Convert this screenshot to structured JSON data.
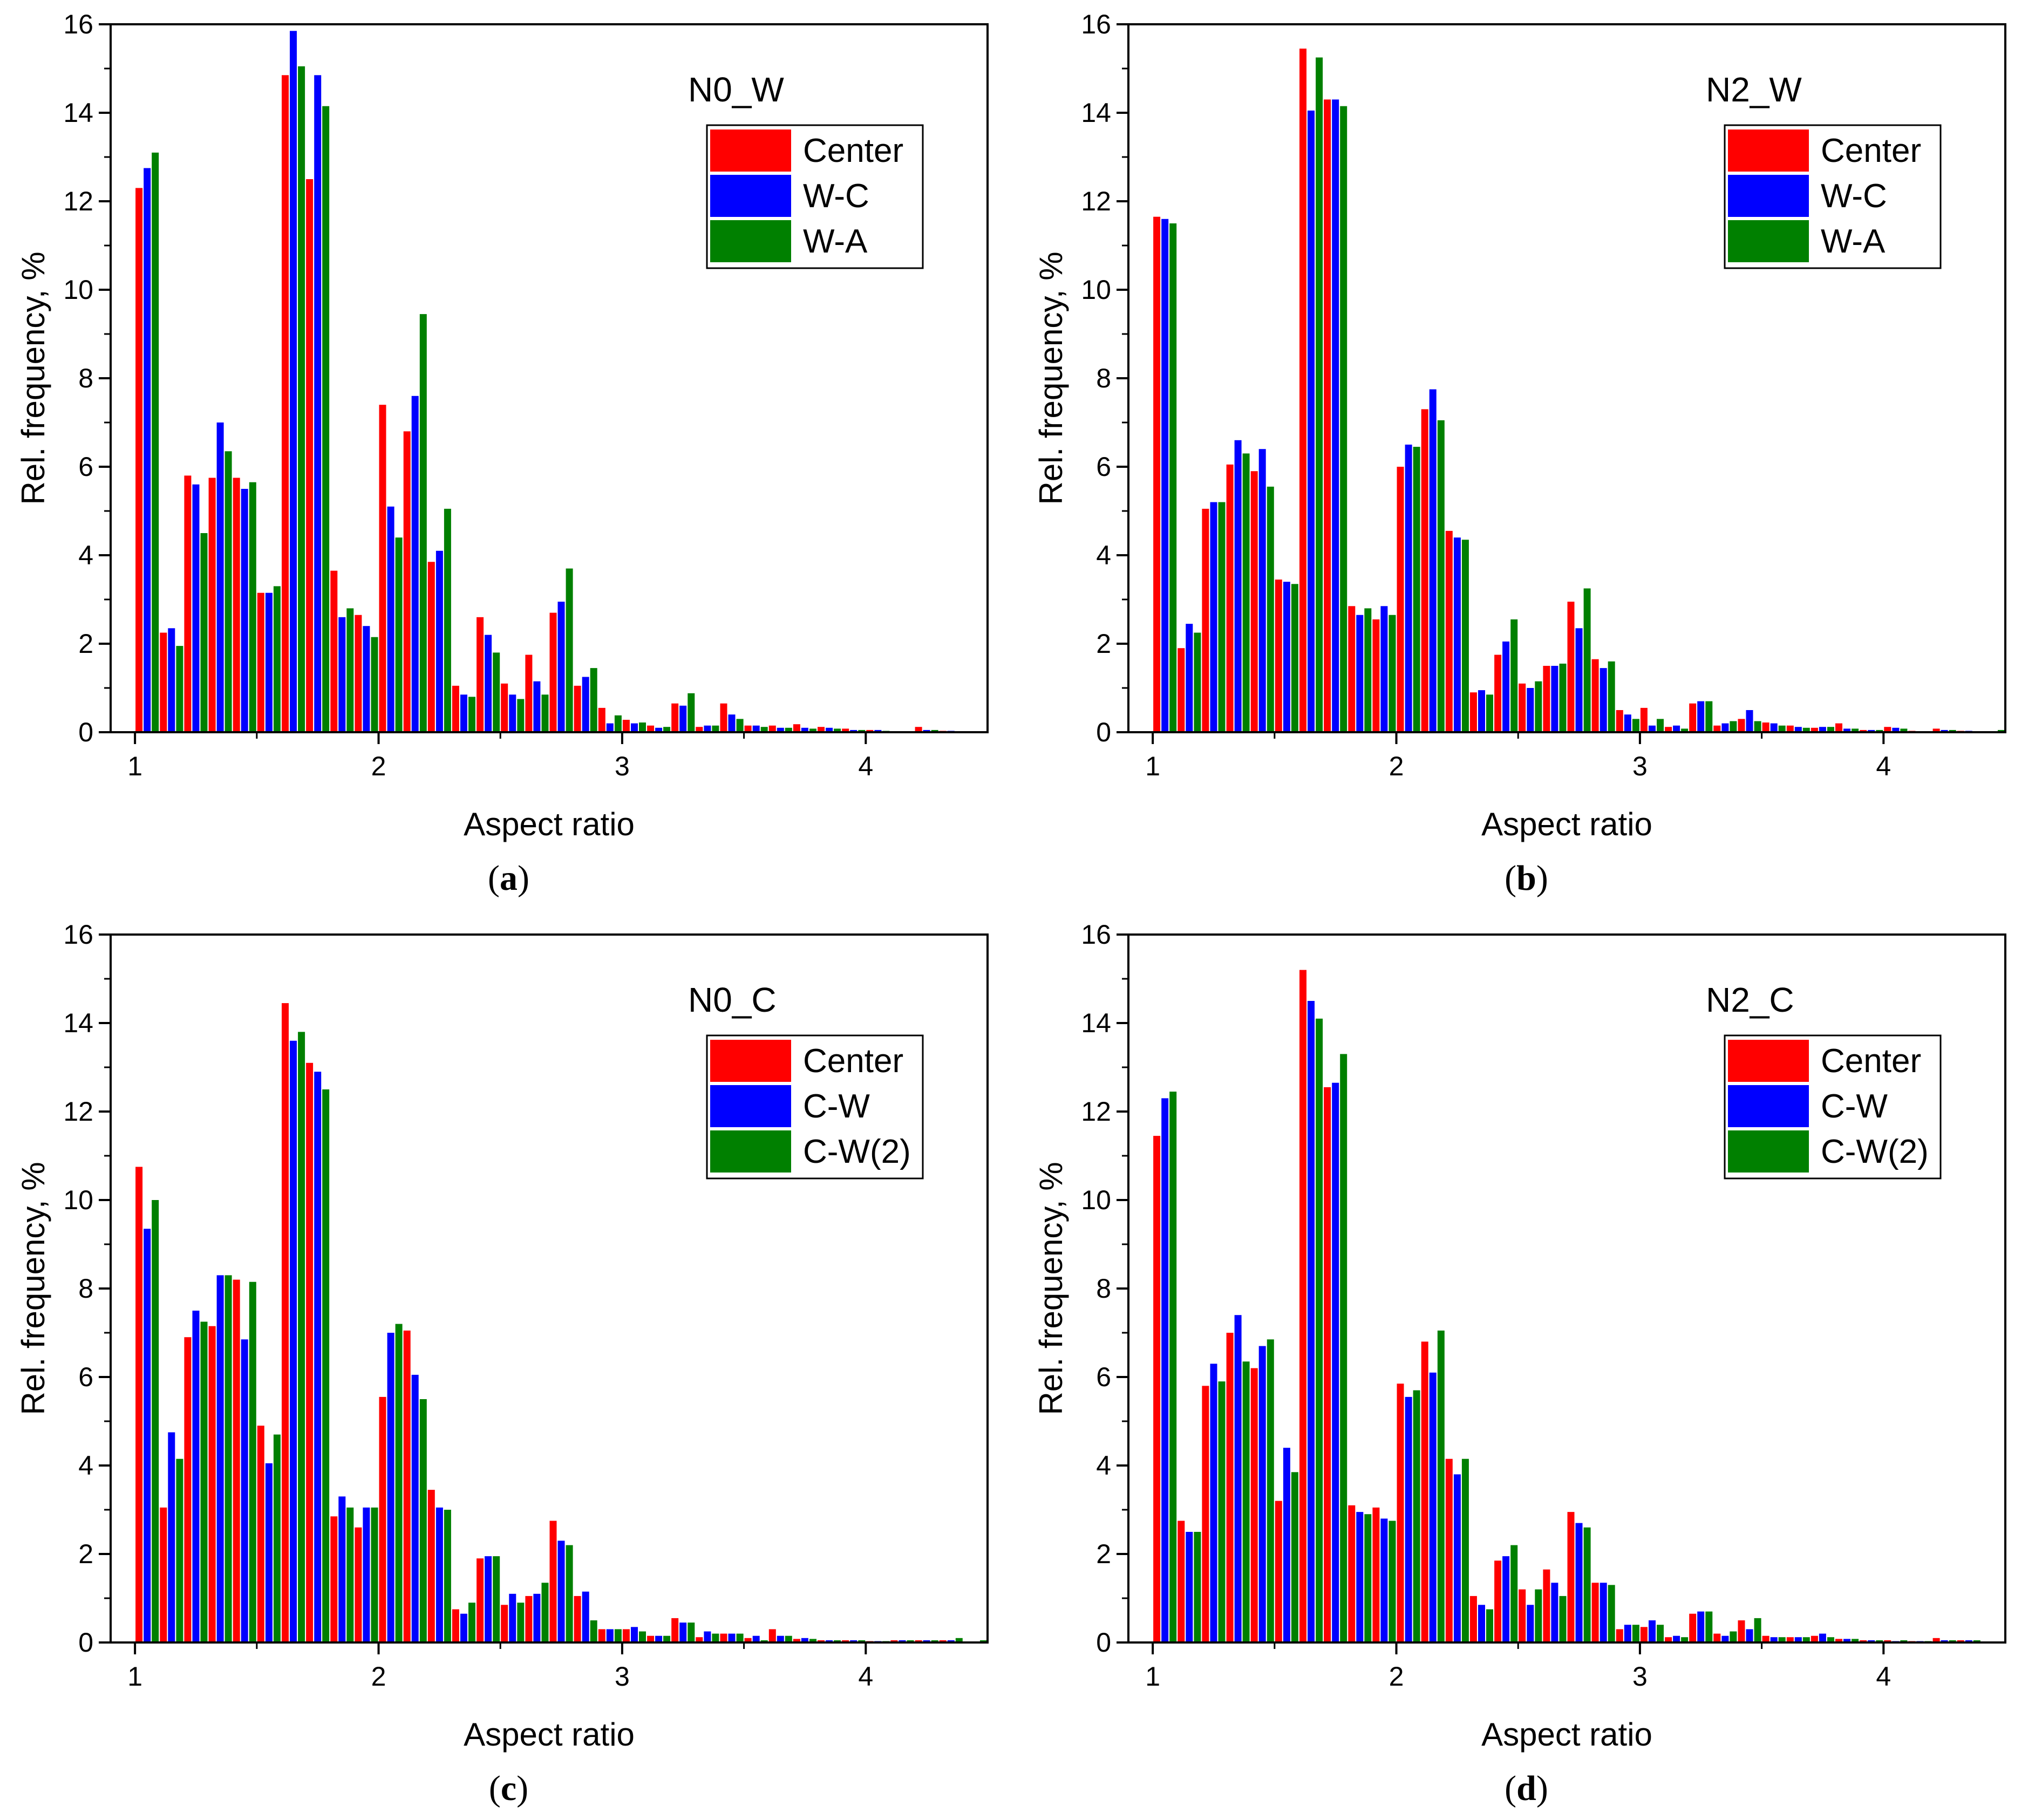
{
  "figure": {
    "captions": [
      "(a)",
      "(b)",
      "(c)",
      "(d)"
    ]
  },
  "colors": {
    "red": "#ff0000",
    "blue": "#0000ff",
    "green": "#008000"
  },
  "chart_data": [
    {
      "type": "bar",
      "panel": "(a)",
      "sample_label": "N0_W",
      "xlabel": "Aspect ratio",
      "ylabel": "Rel. frequency, %",
      "xlim": [
        0.9,
        4.5
      ],
      "ylim": [
        0,
        16
      ],
      "xticks": [
        "1",
        "2",
        "3",
        "4"
      ],
      "yticks": [
        "0",
        "2",
        "4",
        "6",
        "8",
        "10",
        "12",
        "14",
        "16"
      ],
      "x": [
        1.05,
        1.15,
        1.25,
        1.35,
        1.45,
        1.55,
        1.65,
        1.75,
        1.85,
        1.95,
        2.05,
        2.15,
        2.25,
        2.35,
        2.45,
        2.55,
        2.65,
        2.75,
        2.85,
        2.95,
        3.05,
        3.15,
        3.25,
        3.35,
        3.45,
        3.55,
        3.65,
        3.75,
        3.85,
        3.95,
        4.05,
        4.15,
        4.25,
        4.35,
        4.45
      ],
      "series": [
        {
          "name": "Center",
          "values": [
            12.3,
            2.25,
            5.8,
            5.75,
            5.75,
            3.15,
            14.85,
            12.5,
            3.65,
            2.65,
            7.4,
            6.8,
            3.85,
            1.05,
            2.6,
            1.1,
            1.75,
            2.7,
            1.05,
            0.55,
            0.28,
            0.15,
            0.65,
            0.12,
            0.65,
            0.15,
            0.15,
            0.18,
            0.12,
            0.08,
            0.05,
            0.02,
            0.12,
            0.03,
            0.02
          ]
        },
        {
          "name": "W-C",
          "values": [
            12.75,
            2.35,
            5.6,
            7.0,
            5.5,
            3.15,
            15.85,
            14.85,
            2.6,
            2.4,
            5.1,
            7.6,
            4.1,
            0.85,
            2.2,
            0.85,
            1.15,
            2.95,
            1.25,
            0.2,
            0.2,
            0.1,
            0.6,
            0.15,
            0.4,
            0.15,
            0.1,
            0.1,
            0.1,
            0.05,
            0.05,
            0.02,
            0.05,
            0.03,
            0.02
          ]
        },
        {
          "name": "W-A",
          "values": [
            13.1,
            1.95,
            4.5,
            6.35,
            5.65,
            3.3,
            15.05,
            14.15,
            2.8,
            2.15,
            4.4,
            9.45,
            5.05,
            0.8,
            1.8,
            0.75,
            0.85,
            3.7,
            1.45,
            0.38,
            0.22,
            0.12,
            0.88,
            0.15,
            0.3,
            0.12,
            0.1,
            0.08,
            0.08,
            0.05,
            0.03,
            0.02,
            0.05,
            0.02,
            0.02
          ]
        }
      ],
      "legend": {
        "entries": [
          "Center",
          "W-C",
          "W-A"
        ],
        "placement": "top-right"
      }
    },
    {
      "type": "bar",
      "panel": "(b)",
      "sample_label": "N2_W",
      "xlabel": "Aspect ratio",
      "ylabel": "Rel. frequency, %",
      "xlim": [
        0.9,
        4.5
      ],
      "ylim": [
        0,
        16
      ],
      "xticks": [
        "1",
        "2",
        "3",
        "4"
      ],
      "yticks": [
        "0",
        "2",
        "4",
        "6",
        "8",
        "10",
        "12",
        "14",
        "16"
      ],
      "x": [
        1.05,
        1.15,
        1.25,
        1.35,
        1.45,
        1.55,
        1.65,
        1.75,
        1.85,
        1.95,
        2.05,
        2.15,
        2.25,
        2.35,
        2.45,
        2.55,
        2.65,
        2.75,
        2.85,
        2.95,
        3.05,
        3.15,
        3.25,
        3.35,
        3.45,
        3.55,
        3.65,
        3.75,
        3.85,
        3.95,
        4.05,
        4.15,
        4.25,
        4.35,
        4.45
      ],
      "series": [
        {
          "name": "Center",
          "values": [
            11.65,
            1.9,
            5.05,
            6.05,
            5.9,
            3.45,
            15.45,
            14.3,
            2.85,
            2.55,
            6.0,
            7.3,
            4.55,
            0.9,
            1.75,
            1.1,
            1.5,
            2.95,
            1.65,
            0.5,
            0.55,
            0.12,
            0.65,
            0.15,
            0.3,
            0.22,
            0.15,
            0.1,
            0.2,
            0.05,
            0.12,
            0.03,
            0.08,
            0.03,
            0.02
          ]
        },
        {
          "name": "W-C",
          "values": [
            11.6,
            2.45,
            5.2,
            6.6,
            6.4,
            3.4,
            14.05,
            14.3,
            2.65,
            2.85,
            6.5,
            7.75,
            4.4,
            0.95,
            2.05,
            1.0,
            1.5,
            2.35,
            1.45,
            0.4,
            0.15,
            0.15,
            0.7,
            0.2,
            0.5,
            0.2,
            0.12,
            0.12,
            0.08,
            0.05,
            0.1,
            0.02,
            0.05,
            0.03,
            0.02
          ]
        },
        {
          "name": "W-A",
          "values": [
            11.5,
            2.25,
            5.2,
            6.3,
            5.55,
            3.35,
            15.25,
            14.15,
            2.8,
            2.65,
            6.45,
            7.05,
            4.35,
            0.85,
            2.55,
            1.15,
            1.55,
            3.25,
            1.6,
            0.3,
            0.3,
            0.08,
            0.7,
            0.25,
            0.25,
            0.15,
            0.1,
            0.12,
            0.08,
            0.05,
            0.08,
            0.02,
            0.05,
            0.02,
            0.05
          ]
        }
      ],
      "legend": {
        "entries": [
          "Center",
          "W-C",
          "W-A"
        ],
        "placement": "top-right"
      }
    },
    {
      "type": "bar",
      "panel": "(c)",
      "sample_label": "N0_C",
      "xlabel": "Aspect ratio",
      "ylabel": "Rel. frequency, %",
      "xlim": [
        0.9,
        4.5
      ],
      "ylim": [
        0,
        16
      ],
      "xticks": [
        "1",
        "2",
        "3",
        "4"
      ],
      "yticks": [
        "0",
        "2",
        "4",
        "6",
        "8",
        "10",
        "12",
        "14",
        "16"
      ],
      "x": [
        1.05,
        1.15,
        1.25,
        1.35,
        1.45,
        1.55,
        1.65,
        1.75,
        1.85,
        1.95,
        2.05,
        2.15,
        2.25,
        2.35,
        2.45,
        2.55,
        2.65,
        2.75,
        2.85,
        2.95,
        3.05,
        3.15,
        3.25,
        3.35,
        3.45,
        3.55,
        3.65,
        3.75,
        3.85,
        3.95,
        4.05,
        4.15,
        4.25,
        4.35,
        4.45
      ],
      "series": [
        {
          "name": "Center",
          "values": [
            10.75,
            3.05,
            6.9,
            7.15,
            8.2,
            4.9,
            14.45,
            13.1,
            2.85,
            2.6,
            5.55,
            7.05,
            3.45,
            0.75,
            1.9,
            0.85,
            1.05,
            2.75,
            1.05,
            0.3,
            0.3,
            0.15,
            0.55,
            0.12,
            0.2,
            0.1,
            0.3,
            0.08,
            0.05,
            0.05,
            0.03,
            0.05,
            0.05,
            0.05,
            0.02
          ]
        },
        {
          "name": "C-W",
          "values": [
            9.35,
            4.75,
            7.5,
            8.3,
            6.85,
            4.05,
            13.6,
            12.9,
            3.3,
            3.05,
            7.0,
            6.05,
            3.05,
            0.65,
            1.95,
            1.1,
            1.1,
            2.3,
            1.15,
            0.3,
            0.35,
            0.15,
            0.45,
            0.25,
            0.2,
            0.15,
            0.15,
            0.1,
            0.05,
            0.05,
            0.03,
            0.05,
            0.05,
            0.05,
            0.02
          ]
        },
        {
          "name": "C-W(2)",
          "values": [
            10.0,
            4.15,
            7.25,
            8.3,
            8.15,
            4.7,
            13.8,
            12.5,
            3.05,
            3.05,
            7.2,
            5.5,
            3.0,
            0.9,
            1.95,
            0.9,
            1.35,
            2.2,
            0.5,
            0.3,
            0.25,
            0.15,
            0.45,
            0.2,
            0.2,
            0.05,
            0.15,
            0.08,
            0.05,
            0.05,
            0.03,
            0.05,
            0.05,
            0.1,
            0.05
          ]
        }
      ],
      "legend": {
        "entries": [
          "Center",
          "C-W",
          "C-W(2)"
        ],
        "placement": "top-right"
      }
    },
    {
      "type": "bar",
      "panel": "(d)",
      "sample_label": "N2_C",
      "xlabel": "Aspect ratio",
      "ylabel": "Rel. frequency, %",
      "xlim": [
        0.9,
        4.5
      ],
      "ylim": [
        0,
        16
      ],
      "xticks": [
        "1",
        "2",
        "3",
        "4"
      ],
      "yticks": [
        "0",
        "2",
        "4",
        "6",
        "8",
        "10",
        "12",
        "14",
        "16"
      ],
      "x": [
        1.05,
        1.15,
        1.25,
        1.35,
        1.45,
        1.55,
        1.65,
        1.75,
        1.85,
        1.95,
        2.05,
        2.15,
        2.25,
        2.35,
        2.45,
        2.55,
        2.65,
        2.75,
        2.85,
        2.95,
        3.05,
        3.15,
        3.25,
        3.35,
        3.45,
        3.55,
        3.65,
        3.75,
        3.85,
        3.95,
        4.05,
        4.15,
        4.25,
        4.35,
        4.45
      ],
      "series": [
        {
          "name": "Center",
          "values": [
            11.45,
            2.75,
            5.8,
            7.0,
            6.2,
            3.2,
            15.2,
            12.55,
            3.1,
            3.05,
            5.85,
            6.8,
            4.15,
            1.05,
            1.85,
            1.2,
            1.65,
            2.95,
            1.35,
            0.3,
            0.35,
            0.12,
            0.65,
            0.2,
            0.5,
            0.15,
            0.12,
            0.15,
            0.08,
            0.05,
            0.05,
            0.03,
            0.1,
            0.05,
            0.02
          ]
        },
        {
          "name": "C-W",
          "values": [
            12.3,
            2.5,
            6.3,
            7.4,
            6.7,
            4.4,
            14.5,
            12.65,
            2.95,
            2.8,
            5.55,
            6.1,
            3.8,
            0.85,
            1.95,
            0.85,
            1.35,
            2.7,
            1.35,
            0.4,
            0.5,
            0.15,
            0.7,
            0.15,
            0.3,
            0.12,
            0.12,
            0.2,
            0.08,
            0.05,
            0.03,
            0.03,
            0.05,
            0.05,
            0.02
          ]
        },
        {
          "name": "C-W(2)",
          "values": [
            12.45,
            2.5,
            5.9,
            6.35,
            6.85,
            3.85,
            14.1,
            13.3,
            2.9,
            2.75,
            5.7,
            7.05,
            4.15,
            0.75,
            2.2,
            1.2,
            1.05,
            2.6,
            1.3,
            0.4,
            0.4,
            0.12,
            0.7,
            0.25,
            0.55,
            0.12,
            0.12,
            0.12,
            0.08,
            0.05,
            0.05,
            0.03,
            0.05,
            0.05,
            0.02
          ]
        }
      ],
      "legend": {
        "entries": [
          "Center",
          "C-W",
          "C-W(2)"
        ],
        "placement": "top-right"
      }
    }
  ]
}
